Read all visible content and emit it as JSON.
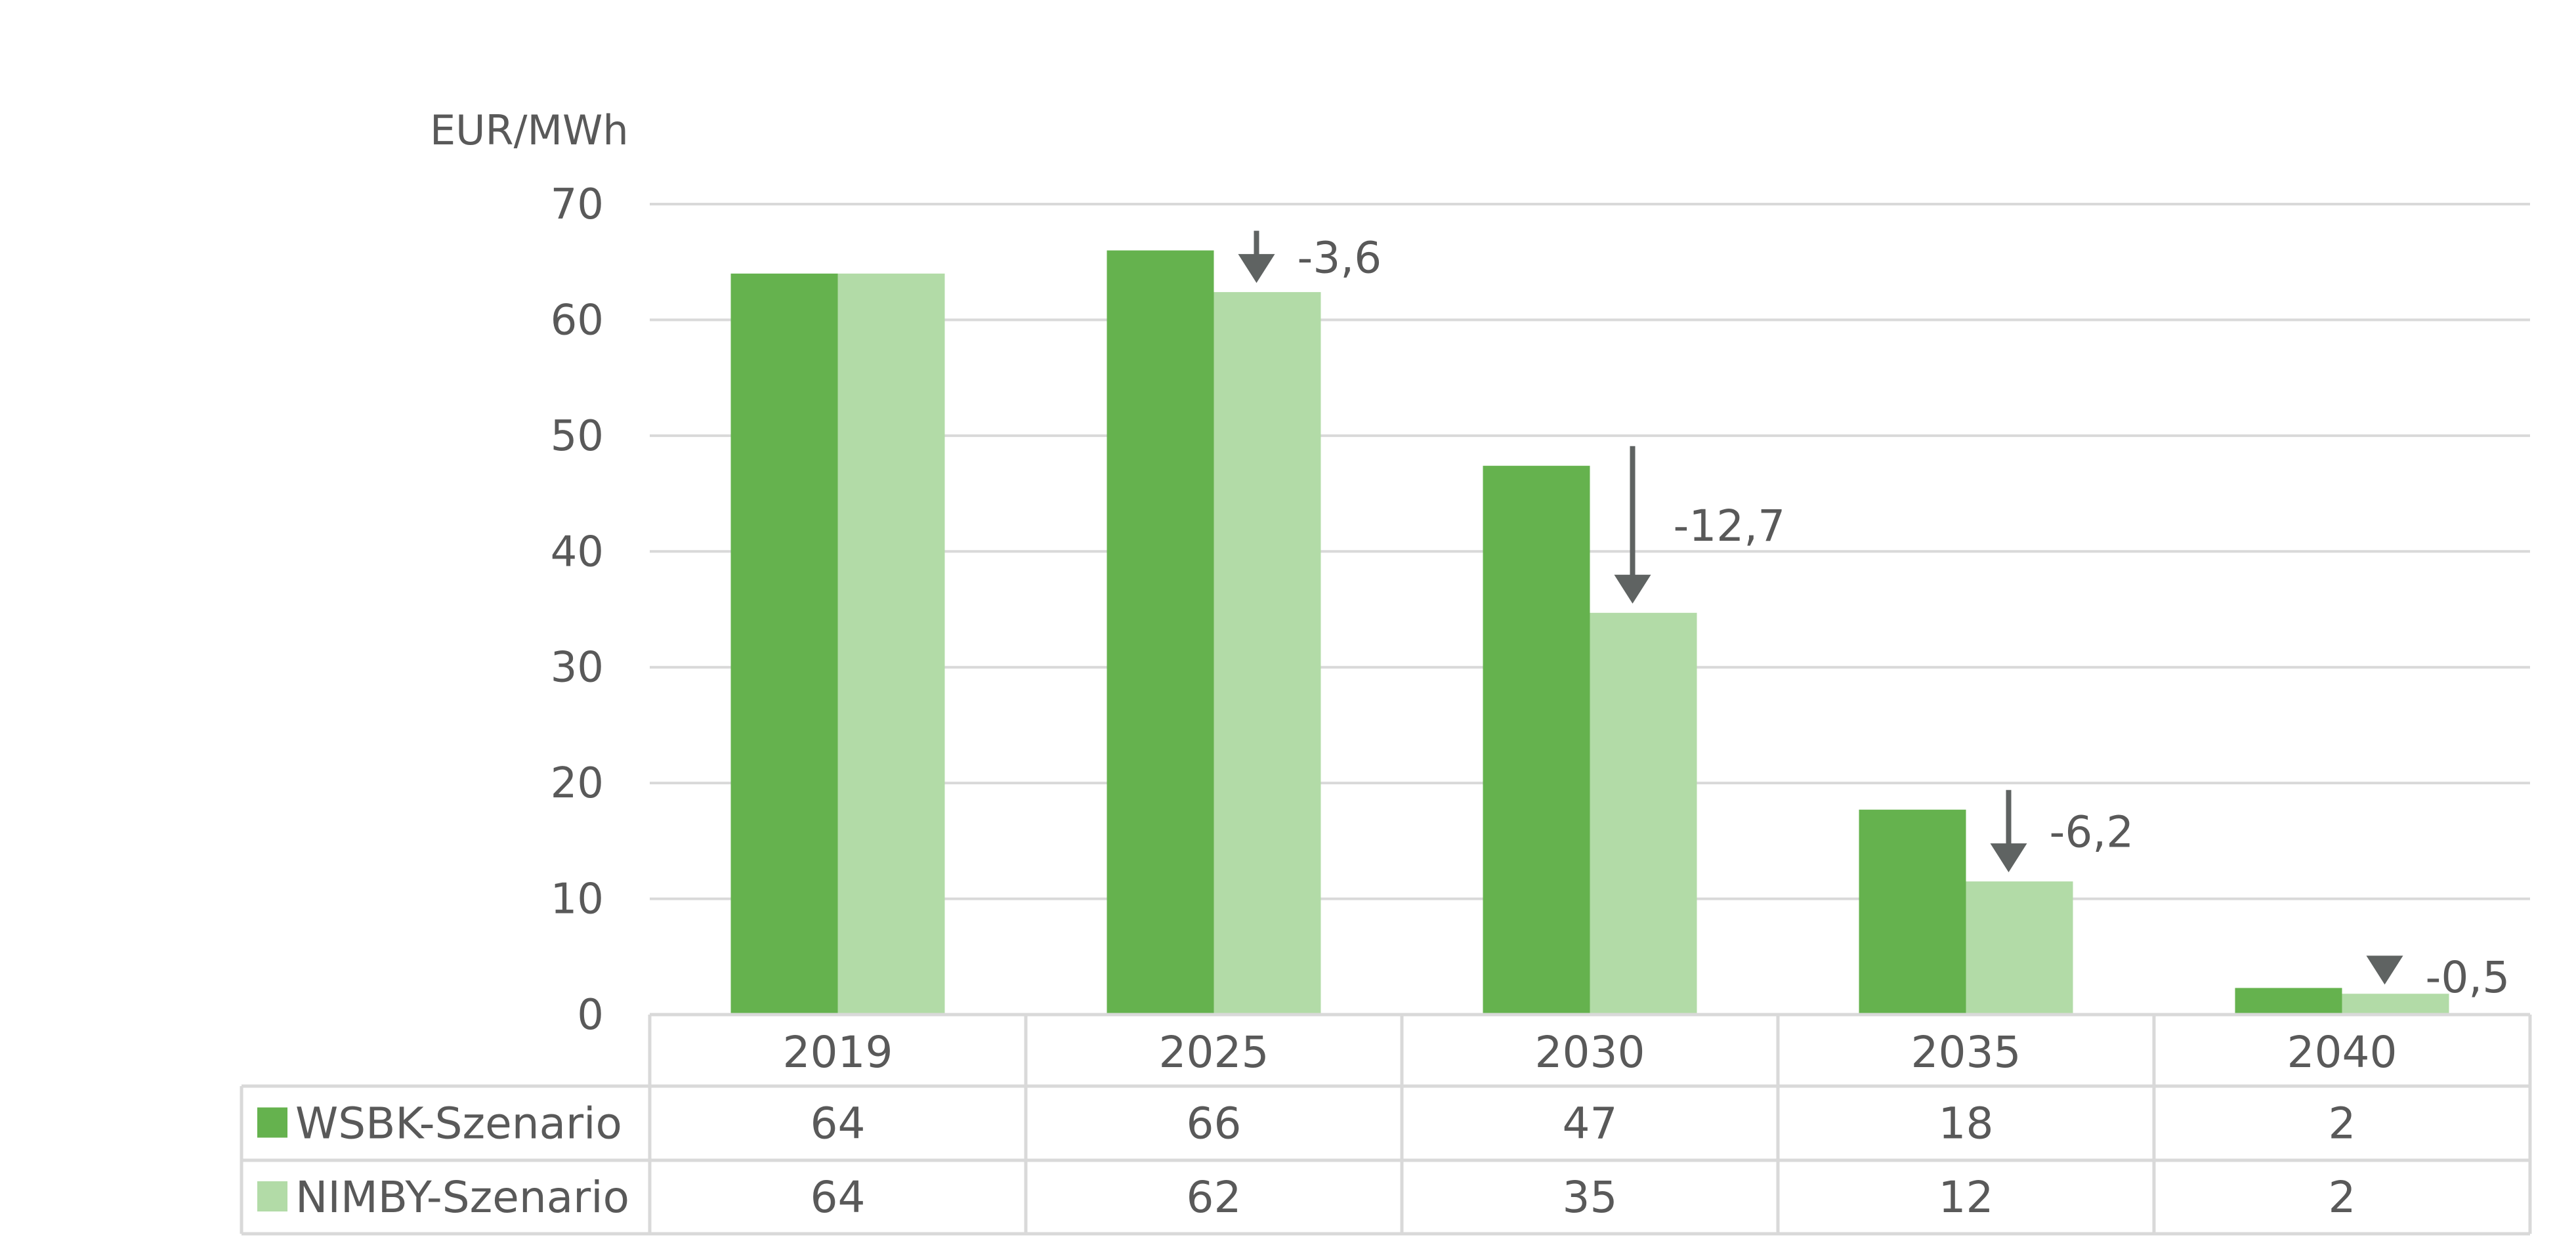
{
  "chart_data": {
    "type": "bar",
    "ylabel": "EUR/MWh",
    "ylim": [
      0,
      70
    ],
    "yticks": [
      "0",
      "10",
      "20",
      "30",
      "40",
      "50",
      "60",
      "70"
    ],
    "grid": true,
    "categories": [
      "2019",
      "2025",
      "2030",
      "2035",
      "2040"
    ],
    "series": [
      {
        "name": "WSBK-Szenario",
        "color": "#65b24e",
        "values": [
          64,
          66,
          47.4,
          17.7,
          2.3
        ],
        "table_values": [
          "64",
          "66",
          "47",
          "18",
          "2"
        ]
      },
      {
        "name": "NIMBY-Szenario",
        "color": "#b2dba7",
        "values": [
          64,
          62.4,
          34.7,
          11.5,
          1.8
        ],
        "table_values": [
          "64",
          "62",
          "35",
          "12",
          "2"
        ]
      }
    ],
    "annotations": [
      {
        "category": "2025",
        "text": "-3,6"
      },
      {
        "category": "2030",
        "text": "-12,7"
      },
      {
        "category": "2035",
        "text": "-6,2"
      },
      {
        "category": "2040",
        "text": "-0,5"
      }
    ],
    "legend": "data-table"
  },
  "colors": {
    "grid": "#d9d9d9",
    "text": "#595959",
    "arrow": "#5f6362"
  }
}
